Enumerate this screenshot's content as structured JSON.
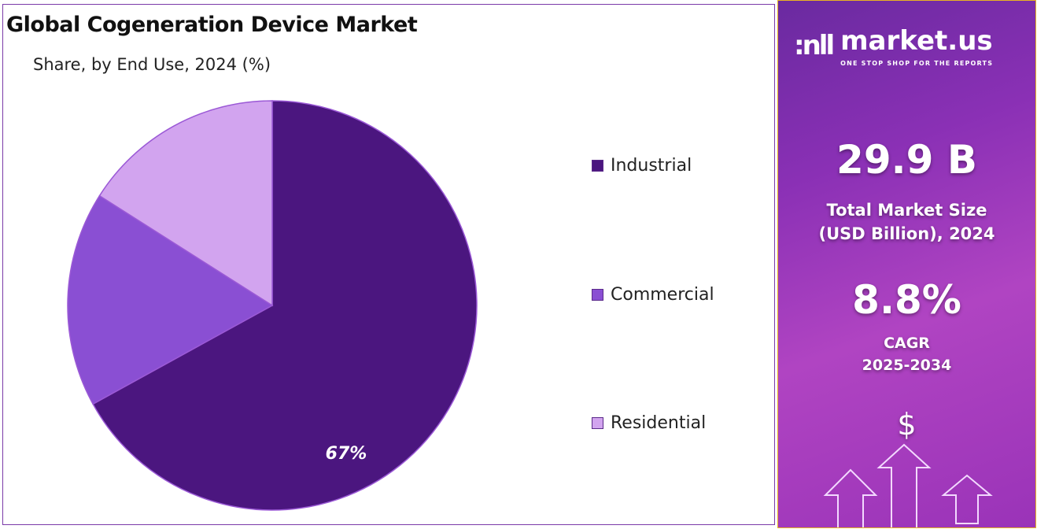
{
  "chart_data": {
    "type": "pie",
    "title": "Global Cogeneration Device Market",
    "subtitle": "Share, by End Use, 2024 (%)",
    "categories": [
      "Industrial",
      "Commercial",
      "Residential"
    ],
    "values": [
      67,
      17,
      16
    ],
    "data_labels": [
      "67%",
      "",
      ""
    ],
    "colors": [
      "#4b167f",
      "#8a4fd3",
      "#d2a4ef"
    ],
    "start": "top, clockwise",
    "legend_position": "right"
  },
  "sidebar": {
    "brand": "market.us",
    "tagline": "ONE STOP SHOP FOR THE REPORTS",
    "market_size": "29.9 B",
    "market_size_label_1": "Total Market Size",
    "market_size_label_2": "(USD Billion), 2024",
    "cagr": "8.8%",
    "cagr_label_1": "CAGR",
    "cagr_label_2": "2025-2034",
    "dollar": "$"
  }
}
